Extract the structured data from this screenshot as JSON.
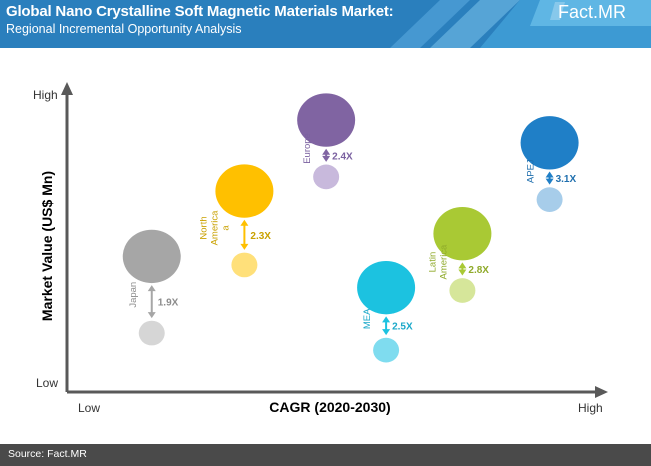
{
  "header": {
    "title": "Global Nano Crystalline Soft Magnetic Materials Market:",
    "subtitle": "Regional Incremental Opportunity Analysis",
    "logo_text": "Fact.MR"
  },
  "footer": {
    "source": "Source: Fact.MR"
  },
  "colors": {
    "header_bg": "#2a7fbd",
    "footer_bg": "#4a4a4a",
    "axis": "#595959"
  },
  "chart_data": {
    "type": "bubble",
    "xlabel": "CAGR (2020-2030)",
    "ylabel": "Market Value (US$ Mn)",
    "x_ticks": {
      "low": "Low",
      "high": "High"
    },
    "y_ticks": {
      "low": "Low",
      "high": "High"
    },
    "series": [
      {
        "name": "Japan",
        "label_lines": [
          "Japan"
        ],
        "multiplier": "1.9X",
        "x": 0.15,
        "y_2030": 0.4,
        "y_2020": 0.13,
        "color": "#a6a6a6",
        "color_2020": "#d6d6d6",
        "label_color": "#8c8c8c"
      },
      {
        "name": "North America",
        "label_lines": [
          "North",
          "America",
          "a"
        ],
        "multiplier": "2.3X",
        "x": 0.32,
        "y_2030": 0.63,
        "y_2020": 0.37,
        "color": "#ffc000",
        "color_2020": "#ffe07a",
        "label_color": "#c9a100"
      },
      {
        "name": "Europe",
        "label_lines": [
          "Europe"
        ],
        "multiplier": "2.4X",
        "x": 0.47,
        "y_2030": 0.88,
        "y_2020": 0.68,
        "color": "#8064a2",
        "color_2020": "#c8b9dc",
        "label_color": "#7a60a0"
      },
      {
        "name": "MEA",
        "label_lines": [
          "MEA"
        ],
        "multiplier": "2.5X",
        "x": 0.58,
        "y_2030": 0.29,
        "y_2020": 0.07,
        "color": "#1cc2e0",
        "color_2020": "#7fdcef",
        "label_color": "#1aa8c9"
      },
      {
        "name": "Latin America",
        "label_lines": [
          "Latin",
          "America"
        ],
        "multiplier": "2.8X",
        "x": 0.72,
        "y_2030": 0.48,
        "y_2020": 0.28,
        "color": "#a9c934",
        "color_2020": "#d6e69a",
        "label_color": "#8faa2a"
      },
      {
        "name": "APEJ",
        "label_lines": [
          "APEJ"
        ],
        "multiplier": "3.1X",
        "x": 0.88,
        "y_2030": 0.8,
        "y_2020": 0.6,
        "color": "#1f7fc7",
        "color_2020": "#a7cdea",
        "label_color": "#1f6fae"
      }
    ]
  }
}
